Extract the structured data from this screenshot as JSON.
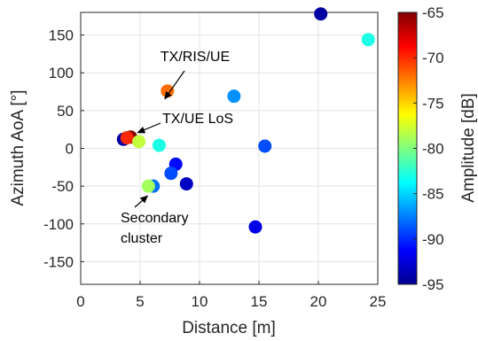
{
  "chart_data": {
    "type": "scatter",
    "xlabel": "Distance [m]",
    "ylabel": "Azimuth AoA [°]",
    "xlim": [
      0,
      25
    ],
    "ylim": [
      -180,
      180
    ],
    "x_ticks": [
      0,
      5,
      10,
      15,
      20,
      25
    ],
    "y_ticks": [
      -150,
      -100,
      -50,
      0,
      50,
      100,
      150
    ],
    "grid": true,
    "colormap": "jet",
    "colorbar": {
      "label": "Amplitude [dB]",
      "range": [
        -95,
        -65
      ],
      "ticks": [
        -65,
        -70,
        -75,
        -80,
        -85,
        -90,
        -95
      ]
    },
    "points": [
      {
        "x": 3.6,
        "y": 12,
        "amplitude": -94
      },
      {
        "x": 4.2,
        "y": 15,
        "amplitude": -65
      },
      {
        "x": 3.9,
        "y": 14,
        "amplitude": -70
      },
      {
        "x": 4.9,
        "y": 9,
        "amplitude": -78
      },
      {
        "x": 6.6,
        "y": 4,
        "amplitude": -83
      },
      {
        "x": 7.3,
        "y": 76,
        "amplitude": -72
      },
      {
        "x": 8.0,
        "y": -21,
        "amplitude": -91
      },
      {
        "x": 7.6,
        "y": -33,
        "amplitude": -89
      },
      {
        "x": 8.9,
        "y": -47,
        "amplitude": -93
      },
      {
        "x": 6.1,
        "y": -50,
        "amplitude": -88
      },
      {
        "x": 5.7,
        "y": -50,
        "amplitude": -79
      },
      {
        "x": 12.9,
        "y": 69,
        "amplitude": -87
      },
      {
        "x": 15.5,
        "y": 3,
        "amplitude": -89
      },
      {
        "x": 14.7,
        "y": -104,
        "amplitude": -92
      },
      {
        "x": 20.2,
        "y": 178,
        "amplitude": -94
      },
      {
        "x": 24.2,
        "y": 144,
        "amplitude": -83
      }
    ],
    "annotations": [
      {
        "text": "TX/RIS/UE",
        "target_x": 7.3,
        "target_y": 76
      },
      {
        "text": "TX/UE LoS",
        "target_x": 4.2,
        "target_y": 15
      },
      {
        "text": "Secondary cluster",
        "lines": [
          "Secondary",
          "cluster"
        ],
        "target_x": 5.7,
        "target_y": -50
      }
    ]
  }
}
